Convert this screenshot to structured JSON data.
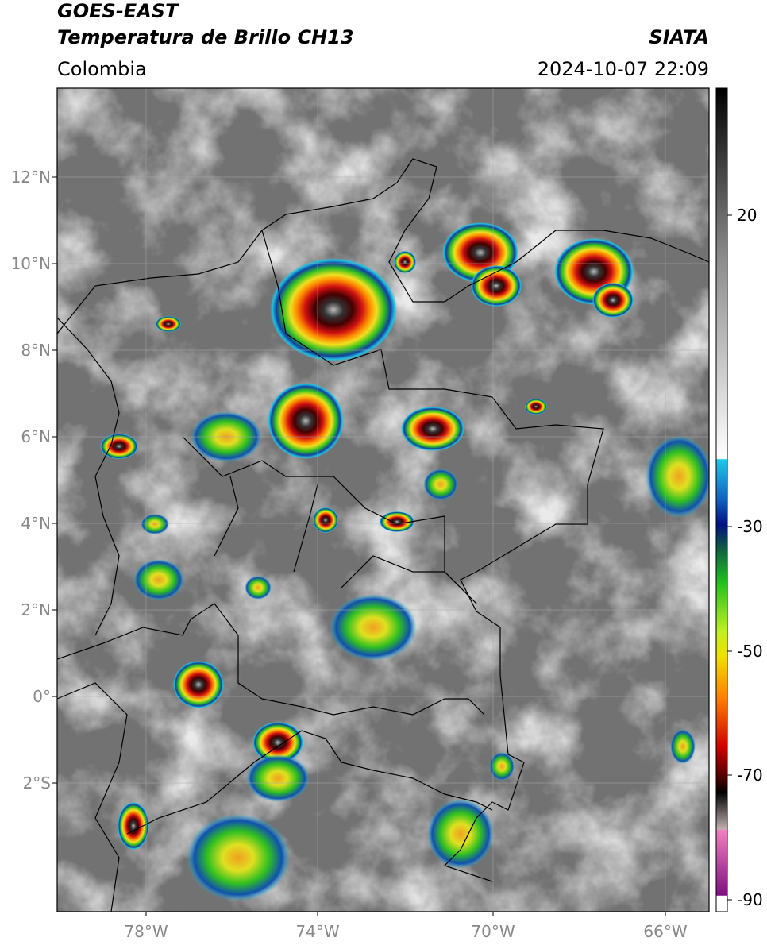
{
  "header": {
    "satellite": "GOES-EAST",
    "product": "Temperatura de Brillo CH13",
    "source": "SIATA",
    "region": "Colombia",
    "datetime": "2024-10-07 22:09"
  },
  "map": {
    "lat_ticks": [
      "12°N",
      "10°N",
      "8°N",
      "6°N",
      "4°N",
      "2°N",
      "0°",
      "2°S"
    ],
    "lon_ticks": [
      "78°W",
      "74°W",
      "70°W",
      "66°W"
    ]
  },
  "colorbar": {
    "ticks": [
      "20",
      "-30",
      "-50",
      "-70",
      "-90"
    ]
  }
}
